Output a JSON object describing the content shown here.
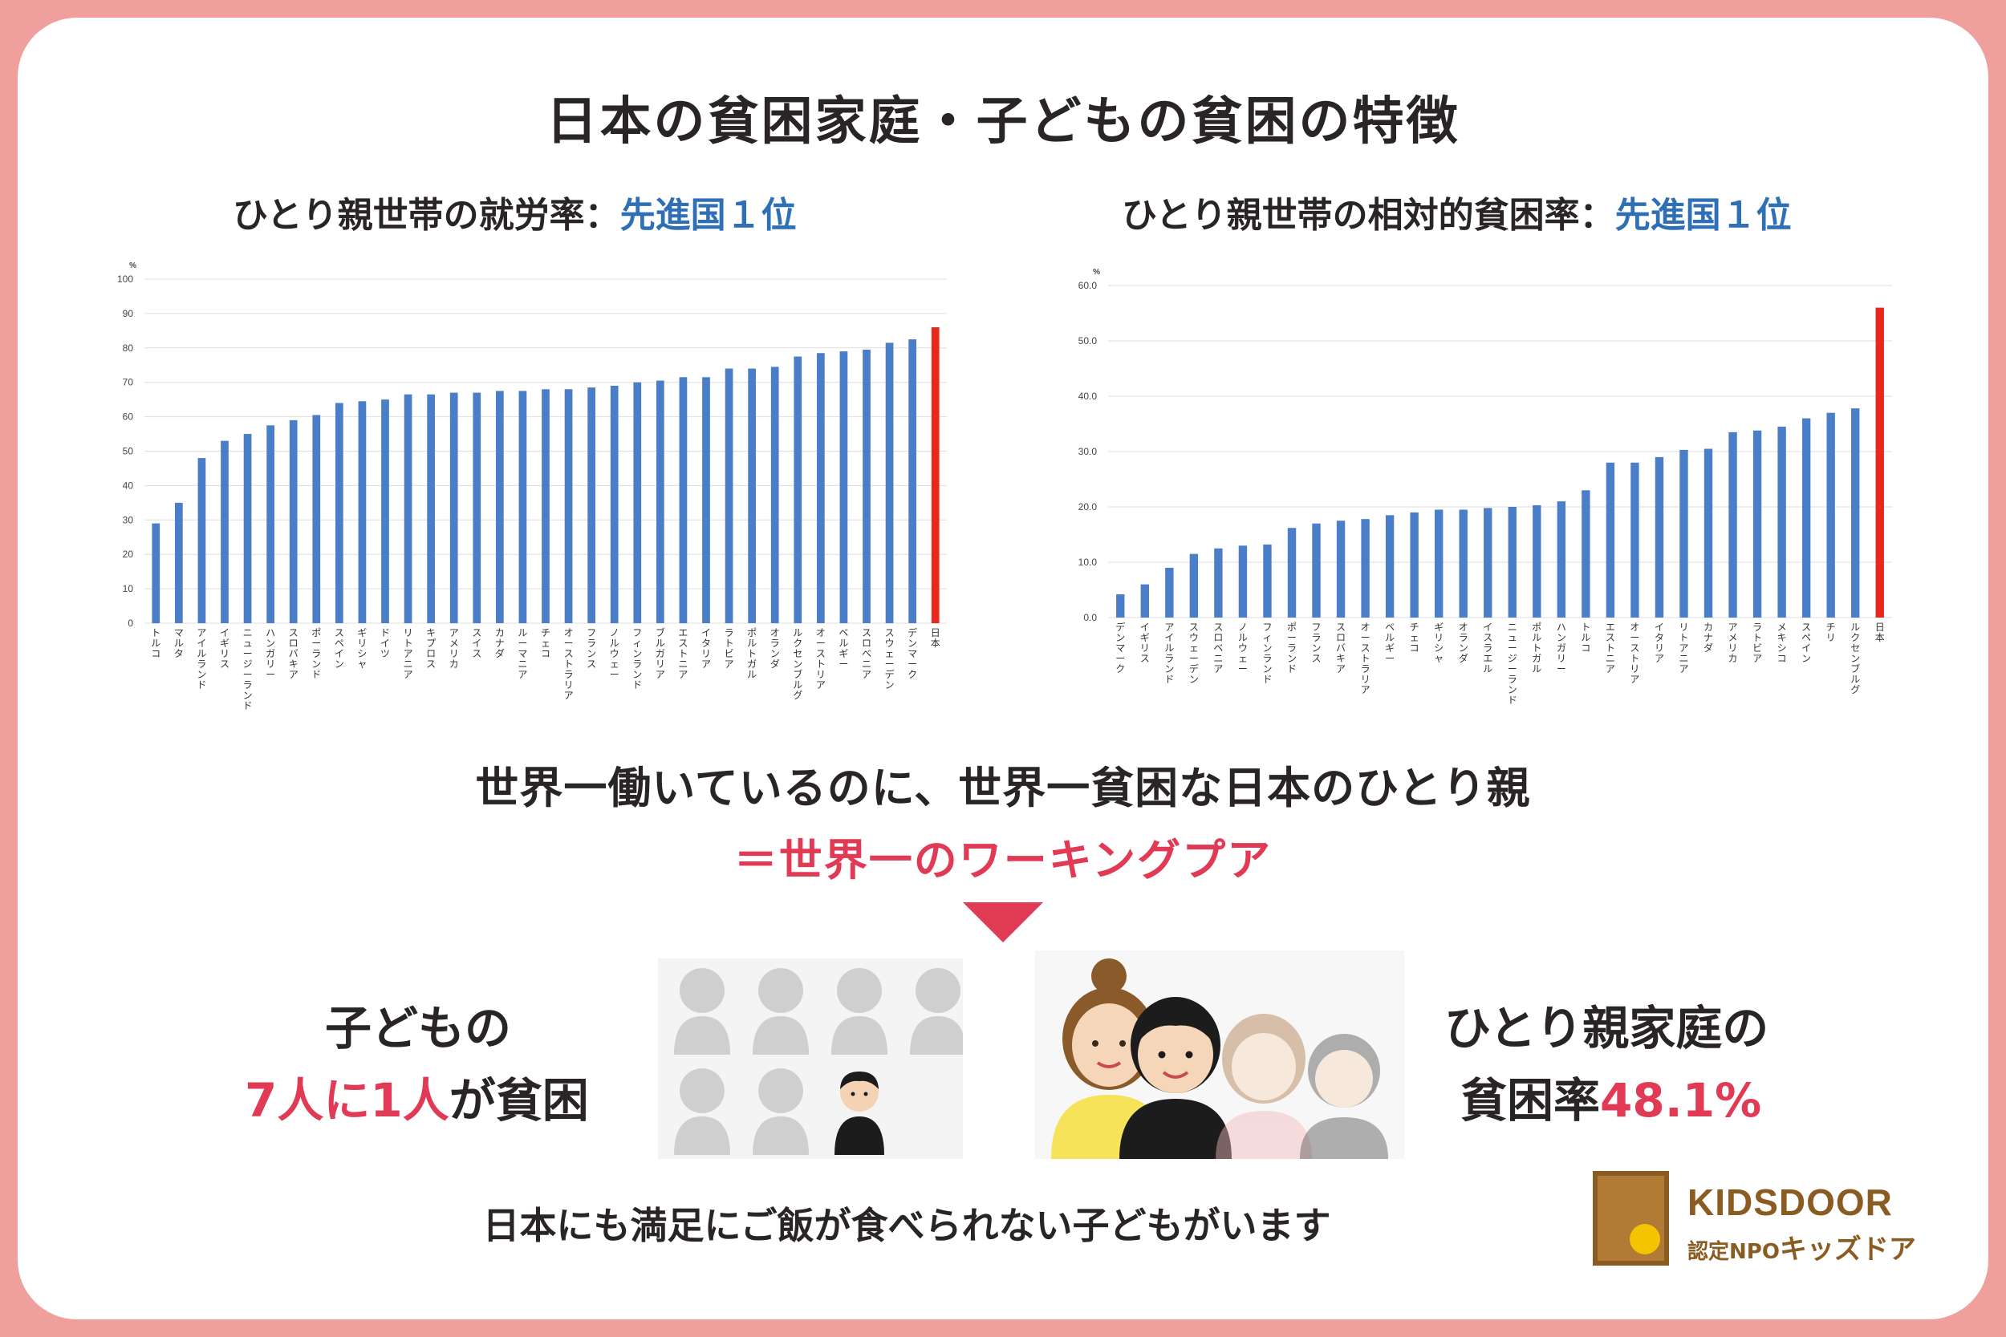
{
  "title": "日本の貧困家庭・子どもの貧困の特徴",
  "chart1_heading": {
    "prefix": "ひとり親世帯の就労率：",
    "highlight": "先進国１位"
  },
  "chart2_heading": {
    "prefix": "ひとり親世帯の相対的貧困率：",
    "highlight": "先進国１位"
  },
  "colors": {
    "bar": "#4a7ec8",
    "highlight_bar": "#e8281c",
    "accent_blue": "#2f6fb5",
    "accent_pink": "#e13a55",
    "border": "#f0a09c"
  },
  "headline": "世界一働いているのに、世界一貧困な日本のひとり親",
  "subline": "＝世界一のワーキングプア",
  "stat_children": {
    "line1": "子どもの",
    "highlight": "7人に1人",
    "rest": "が貧困"
  },
  "stat_single_parent": {
    "line1": "ひとり親家庭の",
    "label": "貧困率",
    "value": "48.1%"
  },
  "footer": "日本にも満足にご飯が食べられない子どもがいます",
  "logo": {
    "brand": "KIDSDOOR",
    "sub_small": "認定NPO",
    "sub_name": "キッズドア"
  },
  "icons": [
    "person-silhouette-icon",
    "child-in-uniform-icon",
    "family-illustration",
    "door-logo-icon"
  ],
  "chart_data": [
    {
      "type": "bar",
      "title": "",
      "unit": "%",
      "ylim": [
        0,
        100
      ],
      "yticks": [
        "0",
        "10",
        "20",
        "30",
        "40",
        "50",
        "60",
        "70",
        "80",
        "90",
        "100"
      ],
      "grid": true,
      "highlight_category": "日本",
      "categories": [
        "トルコ",
        "マルタ",
        "アイルランド",
        "イギリス",
        "ニュージーランド",
        "ハンガリー",
        "スロバキア",
        "ポーランド",
        "スペイン",
        "ギリシャ",
        "ドイツ",
        "リトアニア",
        "キプロス",
        "アメリカ",
        "スイス",
        "カナダ",
        "ルーマニア",
        "チェコ",
        "オーストラリア",
        "フランス",
        "ノルウェー",
        "フィンランド",
        "ブルガリア",
        "エストニア",
        "イタリア",
        "ラトビア",
        "ポルトガル",
        "オランダ",
        "ルクセンブルグ",
        "オーストリア",
        "ベルギー",
        "スロベニア",
        "スウェーデン",
        "デンマーク",
        "日本"
      ],
      "values": [
        29,
        35,
        48,
        53,
        55,
        57.5,
        59,
        60.5,
        64,
        64.5,
        65,
        66.5,
        66.5,
        67,
        67,
        67.5,
        67.5,
        68,
        68,
        68.5,
        69,
        70,
        70.5,
        71.5,
        71.5,
        74,
        74,
        74.5,
        77.5,
        78.5,
        79,
        79.5,
        81.5,
        82.5,
        86
      ]
    },
    {
      "type": "bar",
      "title": "",
      "unit": "%",
      "ylim": [
        0,
        60
      ],
      "yticks": [
        "0.0",
        "10.0",
        "20.0",
        "30.0",
        "40.0",
        "50.0",
        "60.0"
      ],
      "grid": true,
      "highlight_category": "日本",
      "categories": [
        "デンマーク",
        "イギリス",
        "アイルランド",
        "スウェーデン",
        "スロベニア",
        "ノルウェー",
        "フィンランド",
        "ポーランド",
        "フランス",
        "スロバキア",
        "オーストラリア",
        "ベルギー",
        "チェコ",
        "ギリシャ",
        "オランダ",
        "イスラエル",
        "ニュージーランド",
        "ポルトガル",
        "ハンガリー",
        "トルコ",
        "エストニア",
        "オーストリア",
        "イタリア",
        "リトアニア",
        "カナダ",
        "アメリカ",
        "ラトビア",
        "メキシコ",
        "スペイン",
        "チリ",
        "ルクセンブルグ",
        "日本"
      ],
      "values": [
        4.2,
        6,
        9,
        11.5,
        12.5,
        13,
        13.2,
        16.2,
        17,
        17.5,
        17.8,
        18.5,
        19,
        19.5,
        19.5,
        19.8,
        20,
        20.3,
        21,
        23,
        28,
        28,
        29,
        30.3,
        30.5,
        33.5,
        33.8,
        34.5,
        36,
        37,
        37.8,
        56
      ]
    }
  ]
}
